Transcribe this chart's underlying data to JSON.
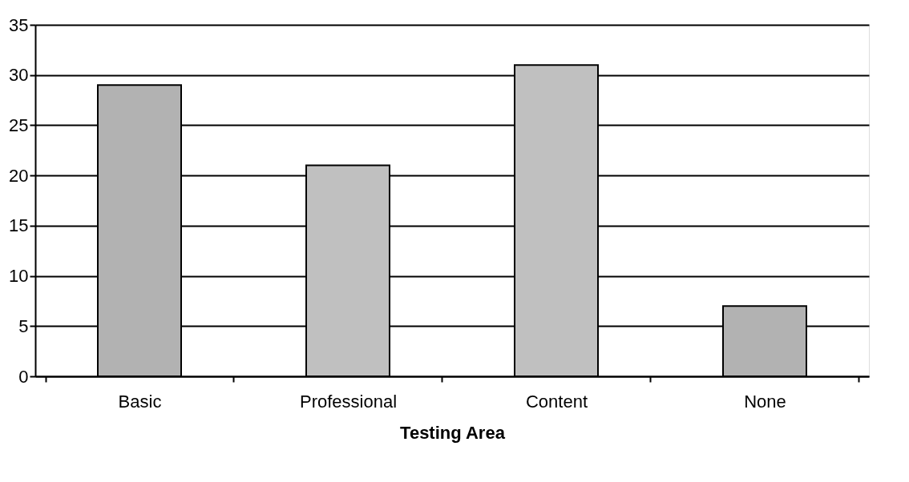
{
  "chart_data": {
    "type": "bar",
    "xlabel": "Testing Area",
    "categories": [
      "Basic",
      "Professional",
      "Content",
      "None"
    ],
    "values": [
      29,
      21,
      31,
      7
    ],
    "colors": [
      "#b2b2b2",
      "#c0c0c0",
      "#c0c0c0",
      "#b2b2b2"
    ],
    "ylim": [
      0,
      35
    ],
    "yticks": [
      0,
      5,
      10,
      15,
      20,
      25,
      30,
      35
    ],
    "grid": "y"
  }
}
